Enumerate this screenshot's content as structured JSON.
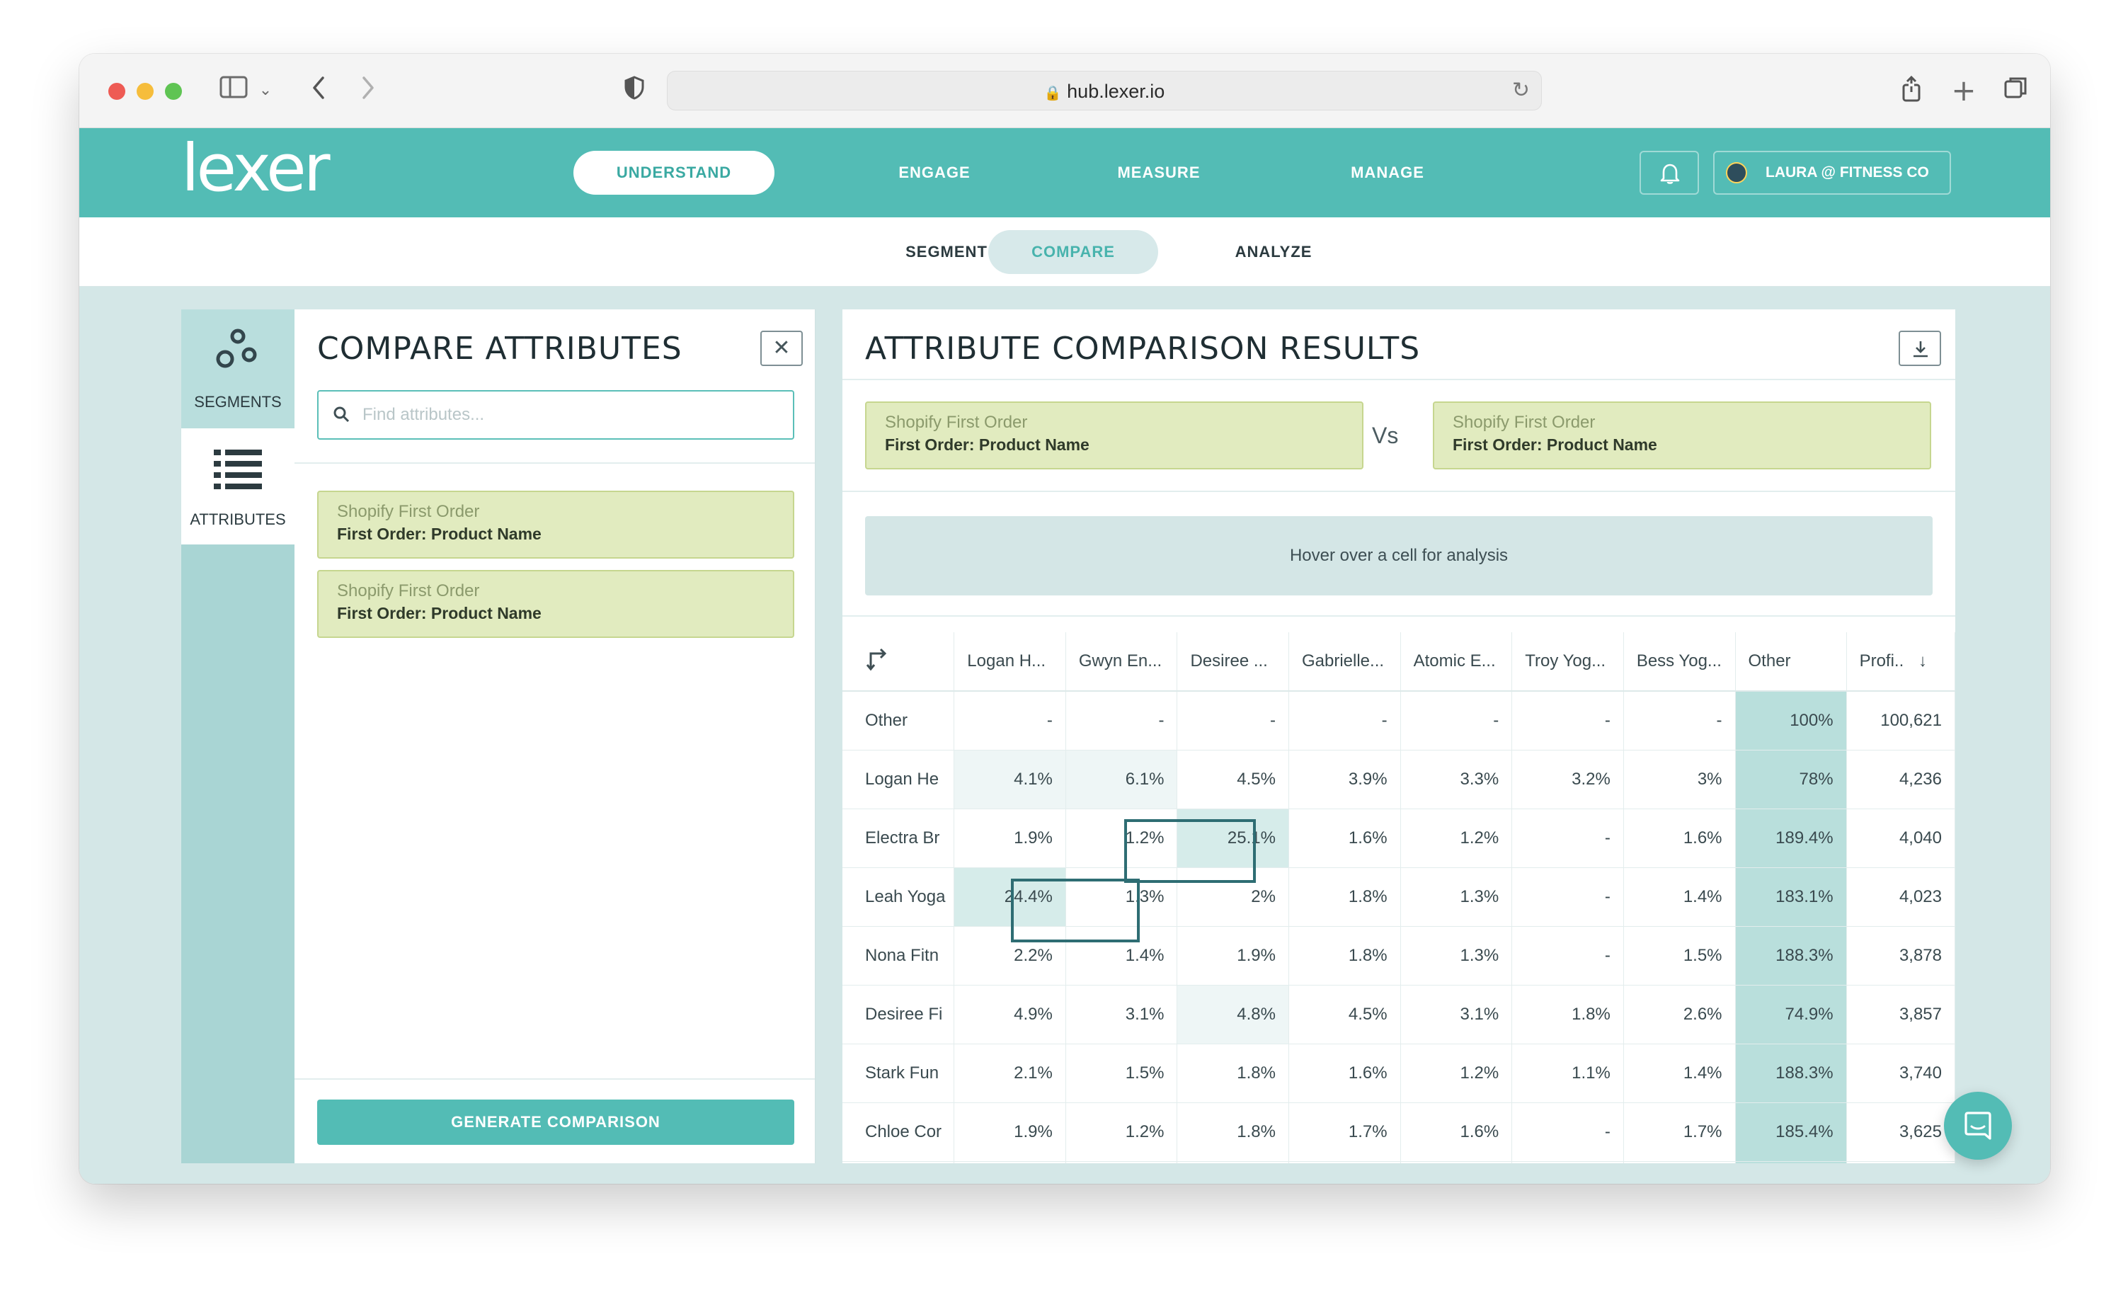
{
  "browser": {
    "url": "hub.lexer.io"
  },
  "topnav": {
    "logo": "lexer",
    "items": [
      "UNDERSTAND",
      "ENGAGE",
      "MEASURE",
      "MANAGE"
    ],
    "active": "UNDERSTAND",
    "user_label": "LAURA @ FITNESS CO"
  },
  "subnav": {
    "items": [
      "SEGMENT",
      "COMPARE",
      "ANALYZE"
    ],
    "active": "COMPARE"
  },
  "sidebar": {
    "segments_label": "SEGMENTS",
    "attributes_label": "ATTRIBUTES"
  },
  "compare_panel": {
    "title": "COMPARE ATTRIBUTES",
    "search_placeholder": "Find attributes...",
    "selected": [
      {
        "source": "Shopify First Order",
        "name": "First Order: Product Name"
      },
      {
        "source": "Shopify First Order",
        "name": "First Order: Product Name"
      }
    ],
    "generate_label": "GENERATE COMPARISON"
  },
  "results_panel": {
    "title": "ATTRIBUTE COMPARISON RESULTS",
    "left_attribute": {
      "source": "Shopify First Order",
      "name": "First Order: Product Name"
    },
    "vs_label": "Vs",
    "right_attribute": {
      "source": "Shopify First Order",
      "name": "First Order: Product Name"
    },
    "hover_hint": "Hover over a cell for analysis",
    "columns": [
      "Logan H...",
      "Gwyn En...",
      "Desiree ...",
      "Gabrielle...",
      "Atomic E...",
      "Troy Yog...",
      "Bess Yog...",
      "Other",
      "Profi.."
    ],
    "rows": [
      {
        "label": "Other",
        "cells": [
          "-",
          "-",
          "-",
          "-",
          "-",
          "-",
          "-",
          "100%",
          "100,621"
        ]
      },
      {
        "label": "Logan He",
        "cells": [
          "4.1%",
          "6.1%",
          "4.5%",
          "3.9%",
          "3.3%",
          "3.2%",
          "3%",
          "78%",
          "4,236"
        ]
      },
      {
        "label": "Electra Br",
        "cells": [
          "1.9%",
          "1.2%",
          "25.1%",
          "1.6%",
          "1.2%",
          "-",
          "1.6%",
          "189.4%",
          "4,040"
        ]
      },
      {
        "label": "Leah Yoga",
        "cells": [
          "24.4%",
          "1.3%",
          "2%",
          "1.8%",
          "1.3%",
          "-",
          "1.4%",
          "183.1%",
          "4,023"
        ]
      },
      {
        "label": "Nona Fitn",
        "cells": [
          "2.2%",
          "1.4%",
          "1.9%",
          "1.8%",
          "1.3%",
          "-",
          "1.5%",
          "188.3%",
          "3,878"
        ]
      },
      {
        "label": "Desiree Fi",
        "cells": [
          "4.9%",
          "3.1%",
          "4.8%",
          "4.5%",
          "3.1%",
          "1.8%",
          "2.6%",
          "74.9%",
          "3,857"
        ]
      },
      {
        "label": "Stark Fun",
        "cells": [
          "2.1%",
          "1.5%",
          "1.8%",
          "1.6%",
          "1.2%",
          "1.1%",
          "1.4%",
          "188.3%",
          "3,740"
        ]
      },
      {
        "label": "Chloe Cor",
        "cells": [
          "1.9%",
          "1.2%",
          "1.8%",
          "1.7%",
          "1.6%",
          "-",
          "1.7%",
          "185.4%",
          "3,625"
        ]
      }
    ]
  },
  "colors": {
    "brand_teal": "#53bcb5",
    "chip_green": "#e1ebbf",
    "highlight_border": "#2e6d73"
  }
}
